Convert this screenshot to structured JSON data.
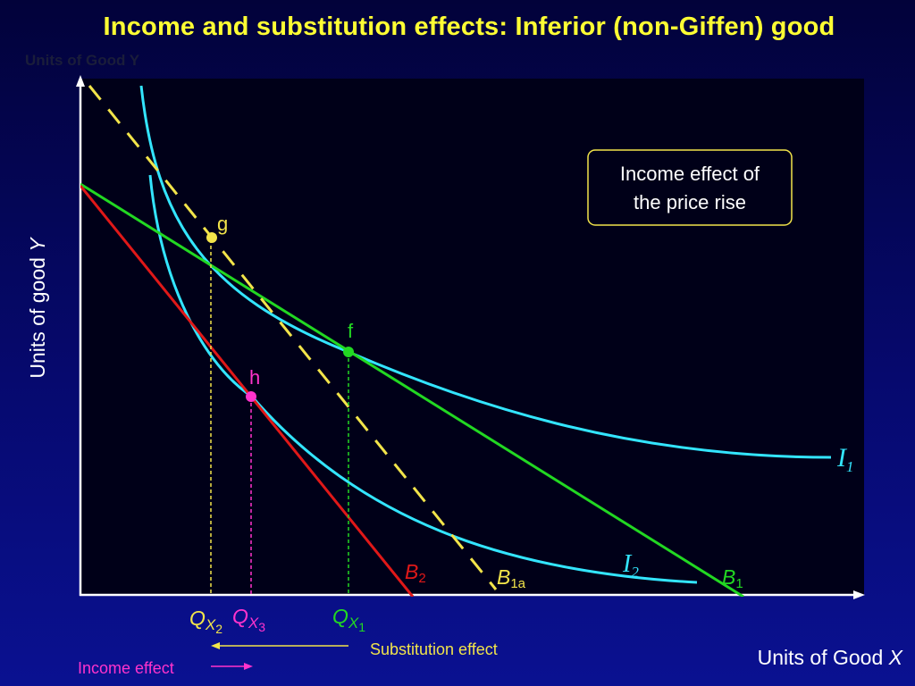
{
  "title": "Income and substitution effects: Inferior (non-Giffen) good",
  "ghost_axis_label": "Units of Good Y",
  "y_axis": {
    "text": "Units of good ",
    "var": "Y"
  },
  "x_axis": {
    "text": "Units of Good ",
    "var": "X"
  },
  "callout": {
    "line1": "Income effect of",
    "line2": "the price rise"
  },
  "points": {
    "g": "g",
    "f": "f",
    "h": "h"
  },
  "curves": {
    "I1": {
      "main": "I",
      "sub": "1"
    },
    "I2": {
      "main": "I",
      "sub": "2"
    }
  },
  "budget_lines": {
    "B1": {
      "main": "B",
      "sub": "1"
    },
    "B1a": {
      "main": "B",
      "sub": "1a"
    },
    "B2": {
      "main": "B",
      "sub": "2"
    }
  },
  "quantities": {
    "QX2": {
      "main": "Q",
      "x": "X",
      "n": "2"
    },
    "QX3": {
      "main": "Q",
      "x": "X",
      "n": "3"
    },
    "QX1": {
      "main": "Q",
      "x": "X",
      "n": "1"
    }
  },
  "effects": {
    "substitution": "Substitution effect",
    "income": "Income effect"
  },
  "colors": {
    "title": "#ffff33",
    "panel": "#000018",
    "indifference": "#33e5ff",
    "budget_b1": "#22d822",
    "budget_b1a": "#f2e44a",
    "budget_b2": "#e01818",
    "point_h": "#ff33cc",
    "callout_border": "#f2e44a"
  }
}
